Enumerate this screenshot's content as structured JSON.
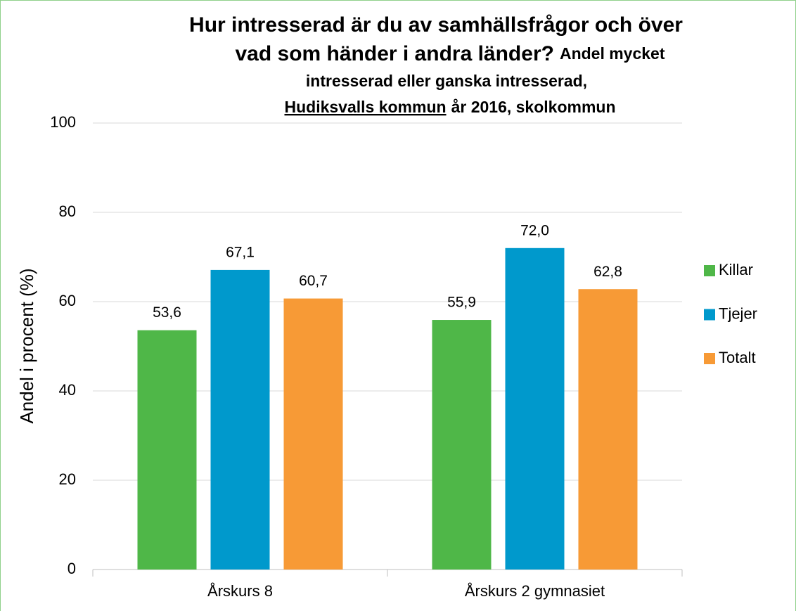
{
  "chart_data": {
    "type": "bar",
    "title": [
      "Hur intresserad är du av samhällsfrågor och över",
      "vad som händer i andra länder?"
    ],
    "subtitle": [
      "Andel mycket",
      "intresserad eller ganska intresserad,",
      "Hudiksvalls kommun",
      "år 2016, skolkommun"
    ],
    "y_label": "Andel i procent (%)",
    "categories": [
      "Årskurs 8",
      "Årskurs 2 gymnasiet"
    ],
    "series": [
      {
        "name": "Killar",
        "color": "#4fb748",
        "values": [
          53.6,
          55.9
        ],
        "value_labels": [
          "53,6",
          "55,9"
        ]
      },
      {
        "name": "Tjejer",
        "color": "#0099cc",
        "values": [
          67.1,
          72.0
        ],
        "value_labels": [
          "67,1",
          "72,0"
        ]
      },
      {
        "name": "Totalt",
        "color": "#f79a36",
        "values": [
          60.7,
          62.8
        ],
        "value_labels": [
          "60,7",
          "62,8"
        ]
      }
    ],
    "ylim": [
      0,
      100
    ],
    "yticks": [
      0,
      20,
      40,
      60,
      80,
      100
    ],
    "grid": true,
    "legend": "right"
  }
}
